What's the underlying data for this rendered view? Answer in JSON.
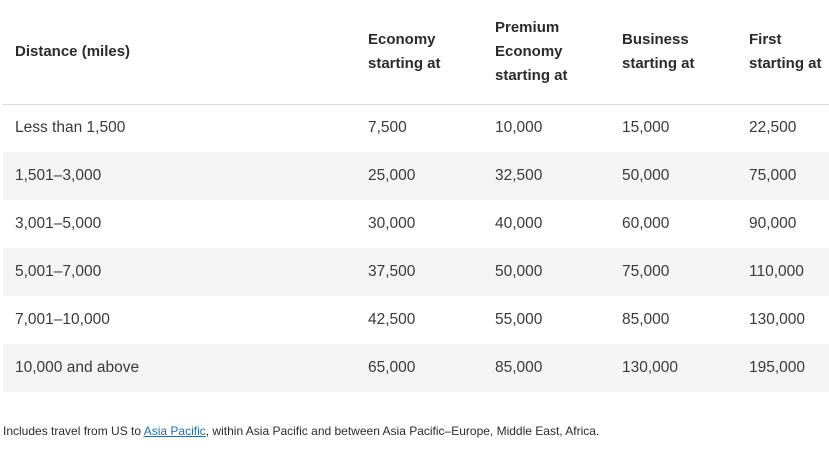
{
  "table": {
    "headers": [
      [
        "Distance (miles)"
      ],
      [
        "Economy",
        "starting at"
      ],
      [
        "Premium",
        "Economy",
        "starting at"
      ],
      [
        "Business",
        "starting at"
      ],
      [
        "First",
        "starting at"
      ]
    ],
    "rows": [
      [
        "Less than 1,500",
        "7,500",
        "10,000",
        "15,000",
        "22,500"
      ],
      [
        "1,501–3,000",
        "25,000",
        "32,500",
        "50,000",
        "75,000"
      ],
      [
        "3,001–5,000",
        "30,000",
        "40,000",
        "60,000",
        "90,000"
      ],
      [
        "5,001–7,000",
        "37,500",
        "50,000",
        "75,000",
        "110,000"
      ],
      [
        "7,001–10,000",
        "42,500",
        "55,000",
        "85,000",
        "130,000"
      ],
      [
        "10,000 and above",
        "65,000",
        "85,000",
        "130,000",
        "195,000"
      ]
    ]
  },
  "footnote": {
    "prefix": "Includes travel from US to ",
    "link": "Asia Pacific",
    "suffix": ", within Asia Pacific and between Asia Pacific–Europe, Middle East, Africa."
  },
  "colors": {
    "row_shade": "#f5f5f5",
    "link": "#1d6fb8",
    "header_border": "#dcdcdc"
  }
}
